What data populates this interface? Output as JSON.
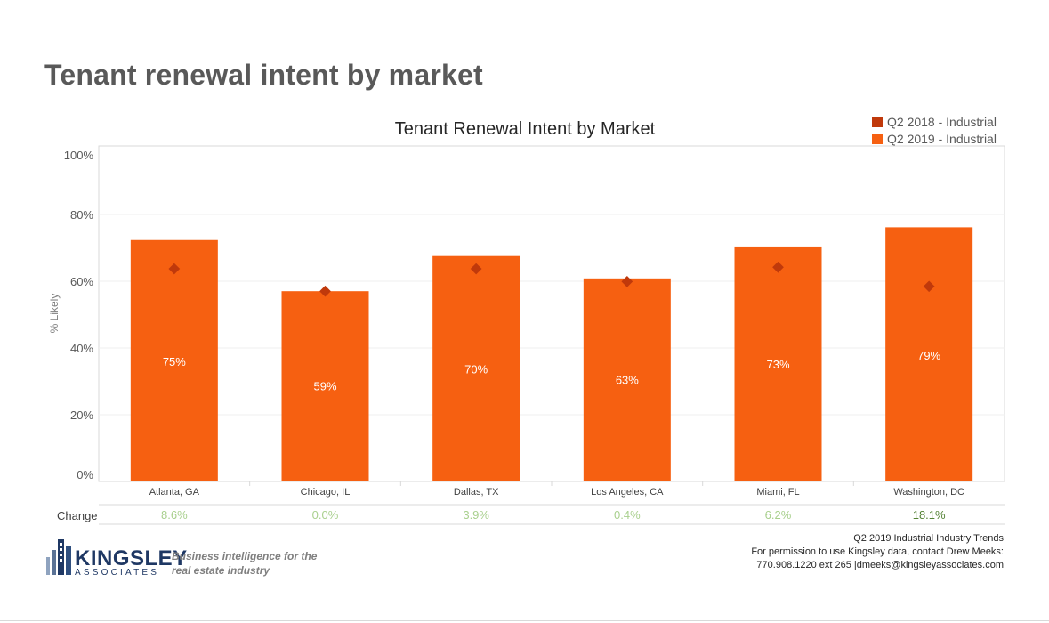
{
  "page": {
    "title": "Tenant renewal intent by market"
  },
  "chart_data": {
    "type": "bar",
    "title": "Tenant Renewal Intent by Market",
    "ylabel": "% Likely",
    "xlabel": "",
    "ylim": [
      0,
      100
    ],
    "yticks": [
      "0%",
      "20%",
      "40%",
      "60%",
      "80%",
      "100%"
    ],
    "categories": [
      "Atlanta, GA",
      "Chicago, IL",
      "Dallas, TX",
      "Los Angeles, CA",
      "Miami, FL",
      "Washington, DC"
    ],
    "series": [
      {
        "name": "Q2 2018 - Industrial",
        "mark": "diamond",
        "color": "#c0390b",
        "values": [
          66,
          59,
          66,
          62,
          66.5,
          60.5
        ]
      },
      {
        "name": "Q2 2019 - Industrial",
        "mark": "bar",
        "color": "#f66011",
        "values": [
          75,
          59,
          70,
          63,
          73,
          79
        ]
      }
    ],
    "data_labels": [
      "75%",
      "59%",
      "70%",
      "63%",
      "73%",
      "79%"
    ],
    "grid": true,
    "legend_position": "top-right",
    "change_row": {
      "label": "Change",
      "values": [
        "8.6%",
        "0.0%",
        "3.9%",
        "0.4%",
        "6.2%",
        "18.1%"
      ],
      "colors": [
        "#a9d08e",
        "#a9d08e",
        "#a9d08e",
        "#a9d08e",
        "#a9d08e",
        "#548235"
      ]
    }
  },
  "footer": {
    "logo_word": "KINGSLEY",
    "logo_sub": "ASSOCIATES",
    "tagline_1": "Business intelligence for the",
    "tagline_2": "real estate industry",
    "line_1": "Q2 2019  Industrial Industry Trends",
    "line_2": "For permission to use Kingsley data, contact Drew Meeks:",
    "line_3": "770.908.1220 ext 265 |dmeeks@kingsleyassociates.com"
  }
}
